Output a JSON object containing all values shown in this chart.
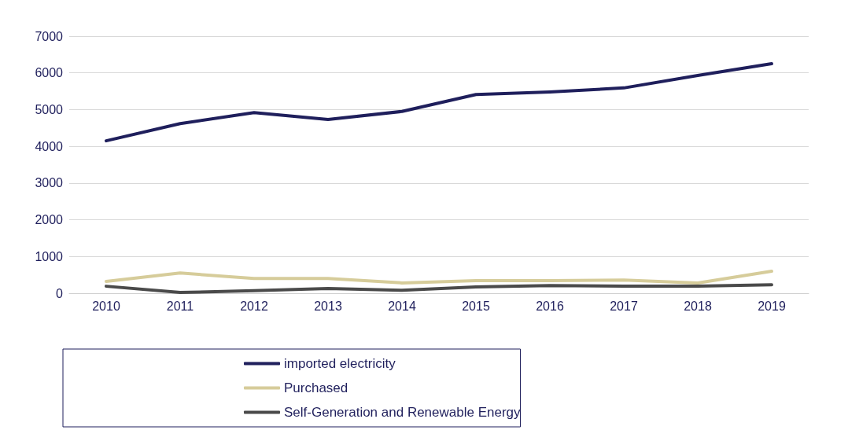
{
  "chart_data": {
    "type": "line",
    "categories": [
      "2010",
      "2011",
      "2012",
      "2013",
      "2014",
      "2015",
      "2016",
      "2017",
      "2018",
      "2019"
    ],
    "series": [
      {
        "name": "imported electricity",
        "color": "#1f1f5c",
        "values": [
          4150,
          4620,
          4920,
          4730,
          4950,
          5410,
          5480,
          5590,
          5930,
          6250
        ]
      },
      {
        "name": "Purchased",
        "color": "#d6cc9a",
        "values": [
          320,
          550,
          400,
          400,
          280,
          340,
          340,
          360,
          280,
          600
        ]
      },
      {
        "name": "Self-Generation and Renewable Energy",
        "color": "#4a4a4a",
        "values": [
          190,
          20,
          70,
          130,
          80,
          170,
          210,
          190,
          190,
          230
        ]
      }
    ],
    "ylim": [
      0,
      7000
    ],
    "yticks": [
      0,
      1000,
      2000,
      3000,
      4000,
      5000,
      6000,
      7000
    ],
    "grid": "y",
    "legend": "bottom",
    "marker": "none",
    "line_style": "solid"
  }
}
